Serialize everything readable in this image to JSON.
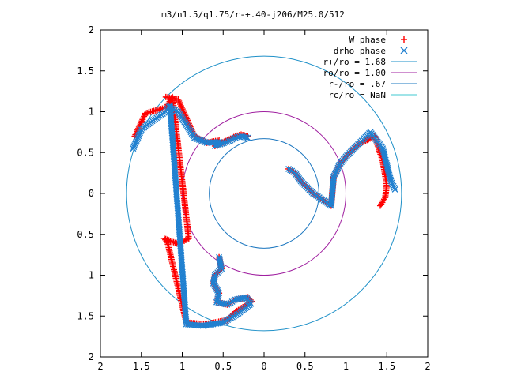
{
  "chart_data": {
    "type": "scatter",
    "title": "m3/n1.5/q1.75/r-+.40-j206/M25.0/512",
    "xlabel": "",
    "ylabel": "",
    "xlim": [
      -2,
      2
    ],
    "ylim": [
      -2,
      2
    ],
    "x_ticks": [
      "2",
      "1.5",
      "1",
      "0.5",
      "0",
      "0.5",
      "1",
      "1.5",
      "2"
    ],
    "y_ticks": [
      "2",
      "1.5",
      "1",
      "0.5",
      "0",
      "0.5",
      "1",
      "1.5",
      "2"
    ],
    "grid": false,
    "legend_position": "top-right",
    "circles": [
      {
        "name": "r+/ro = 1.68",
        "radius": 1.68,
        "color": "#1e90c8"
      },
      {
        "name": "ro/ro = 1.00",
        "radius": 1.0,
        "color": "#a020a0"
      },
      {
        "name": "r-/ro = .67",
        "radius": 0.67,
        "color": "#1e78c0"
      },
      {
        "name": "rc/ro = NaN",
        "radius": null,
        "color": "#40c8d0"
      }
    ],
    "series": [
      {
        "name": "W phase",
        "marker": "+",
        "color": "#ff0000",
        "arms": [
          {
            "x": [
              -0.55,
              -0.52,
              -0.6,
              -0.62,
              -0.55,
              -0.58,
              -0.45,
              -0.35,
              -0.2,
              -0.15,
              -0.35,
              -0.45,
              -0.72,
              -0.95,
              -1.18,
              -1.22,
              -1.05,
              -0.92,
              -1.12,
              -1.2,
              -1.45,
              -1.58
            ],
            "y": [
              -0.78,
              -0.92,
              -1.0,
              -1.1,
              -1.22,
              -1.33,
              -1.36,
              -1.3,
              -1.27,
              -1.32,
              -1.45,
              -1.55,
              -1.6,
              -1.58,
              -0.6,
              -0.55,
              -0.62,
              -0.55,
              1.18,
              1.05,
              0.98,
              0.7
            ]
          },
          {
            "x": [
              -1.2,
              -1.05,
              -0.85,
              -0.7,
              -0.55,
              -0.6,
              -0.45,
              -0.35,
              -0.28,
              -0.2
            ],
            "y": [
              1.18,
              1.15,
              0.7,
              0.62,
              0.65,
              0.58,
              0.65,
              0.7,
              0.72,
              0.7
            ]
          },
          {
            "x": [
              0.3,
              0.38,
              0.45,
              0.6,
              0.75,
              0.82,
              0.85,
              0.92,
              1.0,
              1.15,
              1.35,
              1.45,
              1.5,
              1.48,
              1.42
            ],
            "y": [
              0.3,
              0.25,
              0.15,
              0.0,
              -0.1,
              -0.15,
              0.2,
              0.35,
              0.45,
              0.6,
              0.7,
              0.4,
              0.1,
              -0.05,
              -0.15
            ]
          }
        ]
      },
      {
        "name": "drho phase",
        "marker": "x",
        "color": "#2080d0",
        "arms": [
          {
            "x": [
              -0.55,
              -0.52,
              -0.6,
              -0.62,
              -0.55,
              -0.58,
              -0.45,
              -0.35,
              -0.22,
              -0.16,
              -0.33,
              -0.5,
              -0.75,
              -0.95,
              -1.15,
              -1.2,
              -1.35,
              -1.5,
              -1.6
            ],
            "y": [
              -0.78,
              -0.92,
              -1.0,
              -1.1,
              -1.22,
              -1.33,
              -1.36,
              -1.3,
              -1.27,
              -1.35,
              -1.48,
              -1.58,
              -1.62,
              -1.6,
              1.08,
              1.0,
              0.9,
              0.78,
              0.55
            ]
          },
          {
            "x": [
              -1.15,
              -1.05,
              -0.85,
              -0.7,
              -0.55,
              -0.6,
              -0.45,
              -0.35,
              -0.28,
              -0.2
            ],
            "y": [
              1.05,
              1.0,
              0.68,
              0.62,
              0.63,
              0.58,
              0.63,
              0.68,
              0.7,
              0.68
            ]
          },
          {
            "x": [
              0.3,
              0.38,
              0.45,
              0.6,
              0.75,
              0.82,
              0.85,
              0.92,
              1.0,
              1.15,
              1.3,
              1.45,
              1.5,
              1.55,
              1.6
            ],
            "y": [
              0.3,
              0.25,
              0.15,
              0.0,
              -0.1,
              -0.15,
              0.2,
              0.35,
              0.45,
              0.6,
              0.75,
              0.55,
              0.35,
              0.15,
              0.05
            ]
          }
        ]
      }
    ]
  }
}
